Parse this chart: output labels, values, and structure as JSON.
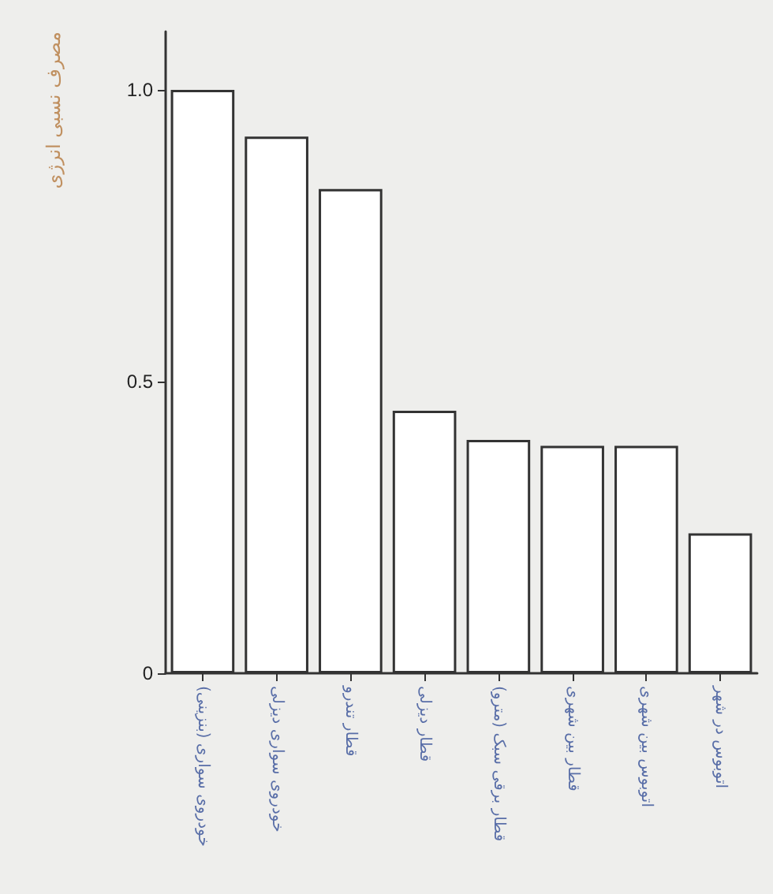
{
  "chart_data": {
    "type": "bar",
    "ylabel": "مصرف نسبی انرژی",
    "categories": [
      "خودروی سواری (بنزینی)",
      "خودروی سواری دیزلی",
      "قطار تندرو",
      "قطار دیزلی",
      "قطار برقی سبک (مترو)",
      "قطار بین شهری",
      "اتوبوس بین شهری",
      "اتوبوس در شهر"
    ],
    "values": [
      1.0,
      0.92,
      0.83,
      0.45,
      0.4,
      0.39,
      0.39,
      0.24
    ],
    "color": "#ffffff",
    "ylim": [
      0,
      1.1
    ],
    "yticks": [
      {
        "value": 0,
        "label": "0"
      },
      {
        "value": 0.5,
        "label": "0.5"
      },
      {
        "value": 1,
        "label": "1.0"
      }
    ],
    "grid": false
  }
}
